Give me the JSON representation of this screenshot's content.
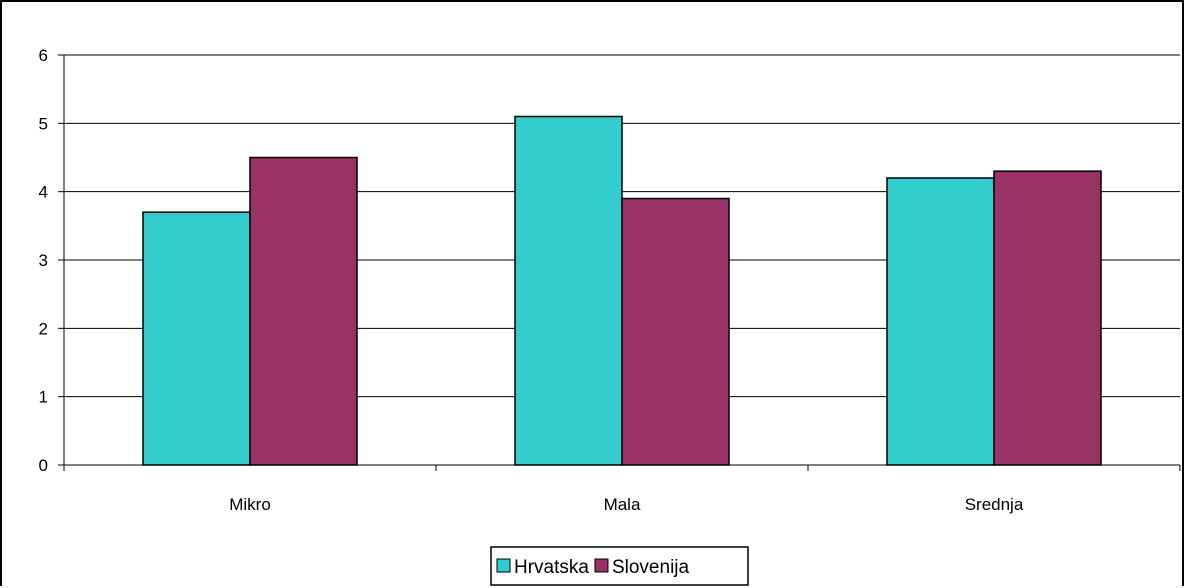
{
  "chart_data": {
    "type": "bar",
    "categories": [
      "Mikro",
      "Mala",
      "Srednja"
    ],
    "series": [
      {
        "name": "Hrvatska",
        "values": [
          3.7,
          5.1,
          4.2
        ],
        "color": "#33CCCC"
      },
      {
        "name": "Slovenija",
        "values": [
          4.5,
          3.9,
          4.3
        ],
        "color": "#993366"
      }
    ],
    "ylim": [
      0,
      6
    ],
    "yticks": [
      0,
      1,
      2,
      3,
      4,
      5,
      6
    ],
    "grid": true,
    "legend": "bottom-center"
  }
}
